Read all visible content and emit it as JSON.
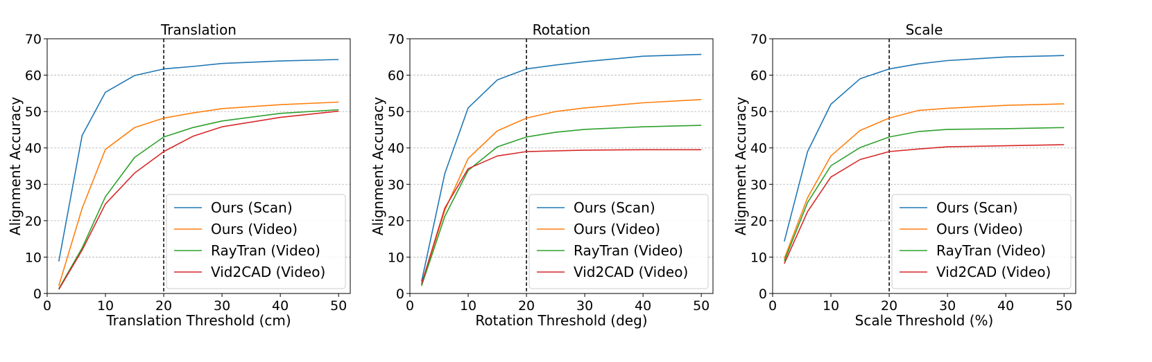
{
  "chart_data": [
    {
      "type": "line",
      "title": "Translation",
      "xlabel": "Translation Threshold (cm)",
      "ylabel": "Alignment Accuracy",
      "x": [
        2,
        6,
        10,
        15,
        20,
        25,
        30,
        40,
        50
      ],
      "xlim": [
        0,
        52
      ],
      "ylim": [
        0,
        70
      ],
      "xticks": [
        0,
        10,
        20,
        30,
        40,
        50
      ],
      "yticks": [
        0,
        10,
        20,
        30,
        40,
        50,
        60,
        70
      ],
      "vline": 20,
      "grid": "horizontal-dashed",
      "legend_position": "bottom-right",
      "series": [
        {
          "name": "Ours (Scan)",
          "color": "#1f77b4",
          "values": [
            8.8,
            43.4,
            55.3,
            59.9,
            61.7,
            62.4,
            63.2,
            63.9,
            64.3
          ]
        },
        {
          "name": "Ours (Video)",
          "color": "#ff7f0e",
          "values": [
            2.1,
            23.4,
            39.6,
            45.6,
            48.2,
            49.6,
            50.8,
            51.9,
            52.6
          ]
        },
        {
          "name": "RayTran (Video)",
          "color": "#2ca02c",
          "values": [
            1.3,
            12.5,
            26.6,
            37.4,
            43.0,
            45.6,
            47.4,
            49.5,
            50.5
          ]
        },
        {
          "name": "Vid2CAD (Video)",
          "color": "#d62728",
          "values": [
            1.1,
            11.9,
            24.6,
            33.1,
            39.0,
            43.2,
            45.8,
            48.4,
            50.1
          ]
        }
      ]
    },
    {
      "type": "line",
      "title": "Rotation",
      "xlabel": "Rotation Threshold (deg)",
      "ylabel": "Alignment Accuracy",
      "x": [
        2,
        6,
        10,
        15,
        20,
        25,
        30,
        40,
        50
      ],
      "xlim": [
        0,
        52
      ],
      "ylim": [
        0,
        70
      ],
      "xticks": [
        0,
        10,
        20,
        30,
        40,
        50
      ],
      "yticks": [
        0,
        10,
        20,
        30,
        40,
        50,
        60,
        70
      ],
      "vline": 20,
      "grid": "horizontal-dashed",
      "legend_position": "bottom-right",
      "series": [
        {
          "name": "Ours (Scan)",
          "color": "#1f77b4",
          "values": [
            3.3,
            33.0,
            51.0,
            58.7,
            61.7,
            62.8,
            63.7,
            65.2,
            65.7
          ]
        },
        {
          "name": "Ours (Video)",
          "color": "#ff7f0e",
          "values": [
            2.4,
            22.9,
            37.1,
            44.7,
            48.2,
            50.0,
            51.0,
            52.4,
            53.3
          ]
        },
        {
          "name": "RayTran (Video)",
          "color": "#2ca02c",
          "values": [
            2.1,
            21.2,
            33.8,
            40.3,
            43.0,
            44.3,
            45.1,
            45.8,
            46.2
          ]
        },
        {
          "name": "Vid2CAD (Video)",
          "color": "#d62728",
          "values": [
            2.6,
            23.5,
            34.3,
            37.8,
            39.0,
            39.2,
            39.4,
            39.5,
            39.5
          ]
        }
      ]
    },
    {
      "type": "line",
      "title": "Scale",
      "xlabel": "Scale Threshold (%)",
      "ylabel": "Alignment Accuracy",
      "x": [
        2,
        6,
        10,
        15,
        20,
        25,
        30,
        40,
        50
      ],
      "xlim": [
        0,
        52
      ],
      "ylim": [
        0,
        70
      ],
      "xticks": [
        0,
        10,
        20,
        30,
        40,
        50
      ],
      "yticks": [
        0,
        10,
        20,
        30,
        40,
        50,
        60,
        70
      ],
      "vline": 20,
      "grid": "horizontal-dashed",
      "legend_position": "bottom-right",
      "series": [
        {
          "name": "Ours (Scan)",
          "color": "#1f77b4",
          "values": [
            14.3,
            39.0,
            52.0,
            59.0,
            61.7,
            63.1,
            64.0,
            65.0,
            65.4
          ]
        },
        {
          "name": "Ours (Video)",
          "color": "#ff7f0e",
          "values": [
            9.6,
            26.3,
            37.8,
            44.8,
            48.2,
            50.3,
            50.9,
            51.7,
            52.1
          ]
        },
        {
          "name": "RayTran (Video)",
          "color": "#2ca02c",
          "values": [
            8.9,
            25.0,
            35.1,
            40.1,
            43.0,
            44.5,
            45.1,
            45.3,
            45.6
          ]
        },
        {
          "name": "Vid2CAD (Video)",
          "color": "#d62728",
          "values": [
            8.2,
            22.5,
            32.0,
            36.8,
            39.0,
            39.7,
            40.3,
            40.6,
            40.9
          ]
        }
      ]
    }
  ]
}
